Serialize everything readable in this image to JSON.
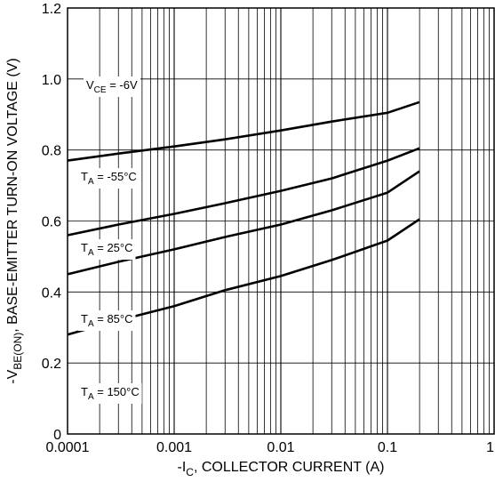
{
  "chart_data": {
    "type": "line",
    "x_scale": "log",
    "xlim": [
      0.0001,
      1
    ],
    "ylim": [
      0,
      1.2
    ],
    "grid": true,
    "x_ticks": [
      "0.0001",
      "0.001",
      "0.01",
      "0.1",
      "1"
    ],
    "y_ticks": [
      "0",
      "0.2",
      "0.4",
      "0.6",
      "0.8",
      "1.0",
      "1.2"
    ],
    "xlabel": {
      "prefix": "-I",
      "sub": "C",
      "suffix": ", COLLECTOR CURRENT (A)"
    },
    "ylabel": {
      "prefix": "-V",
      "sub": "BE(ON)",
      "suffix": ", BASE-EMITTER TURN-ON VOLTAGE (V)"
    },
    "annotations": [
      {
        "main": "V",
        "sub": "CE",
        "rest": " = -6V"
      }
    ],
    "series": [
      {
        "label_main": "T",
        "label_sub": "A",
        "label_rest": " = -55°C",
        "x": [
          0.0001,
          0.0003,
          0.001,
          0.003,
          0.01,
          0.03,
          0.1,
          0.2
        ],
        "y": [
          0.77,
          0.79,
          0.81,
          0.83,
          0.855,
          0.88,
          0.905,
          0.935
        ]
      },
      {
        "label_main": "T",
        "label_sub": "A",
        "label_rest": " = 25°C",
        "x": [
          0.0001,
          0.0003,
          0.001,
          0.003,
          0.01,
          0.03,
          0.1,
          0.2
        ],
        "y": [
          0.56,
          0.59,
          0.62,
          0.65,
          0.685,
          0.72,
          0.77,
          0.805
        ]
      },
      {
        "label_main": "T",
        "label_sub": "A",
        "label_rest": " = 85°C",
        "x": [
          0.0001,
          0.0003,
          0.001,
          0.003,
          0.01,
          0.03,
          0.1,
          0.2
        ],
        "y": [
          0.45,
          0.485,
          0.52,
          0.555,
          0.59,
          0.63,
          0.68,
          0.74
        ]
      },
      {
        "label_main": "T",
        "label_sub": "A",
        "label_rest": " = 150°C",
        "x": [
          0.0001,
          0.0003,
          0.001,
          0.003,
          0.01,
          0.03,
          0.1,
          0.2
        ],
        "y": [
          0.28,
          0.32,
          0.36,
          0.405,
          0.445,
          0.49,
          0.545,
          0.605
        ]
      }
    ]
  }
}
